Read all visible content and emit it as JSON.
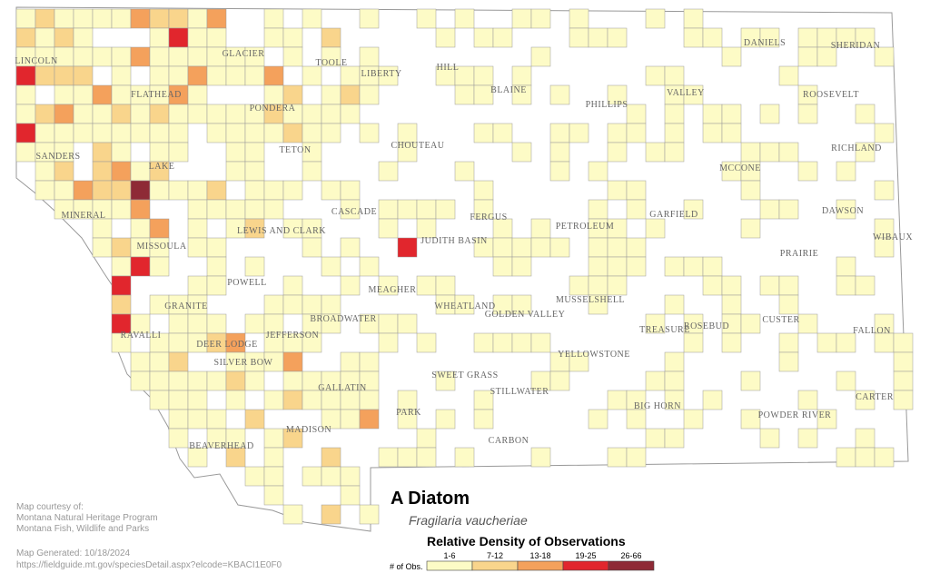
{
  "map": {
    "title": "A Diatom",
    "species": "Fragilaria vaucheriae",
    "counties": [
      "GLACIER",
      "TOOLE",
      "LIBERTY",
      "HILL",
      "DANIELS",
      "SHERIDAN",
      "LINCOLN",
      "FLATHEAD",
      "BLAINE",
      "PHILLIPS",
      "VALLEY",
      "ROOSEVELT",
      "PONDERA",
      "TETON",
      "CHOUTEAU",
      "RICHLAND",
      "SANDERS",
      "LAKE",
      "MCCONE",
      "CASCADE",
      "DAWSON",
      "MINERAL",
      "LEWIS AND CLARK",
      "JUDITH BASIN",
      "FERGUS",
      "PETROLEUM",
      "GARFIELD",
      "WIBAUX",
      "MISSOULA",
      "PRAIRIE",
      "POWELL",
      "MEAGHER",
      "WHEATLAND",
      "GOLDEN VALLEY",
      "MUSSELSHELL",
      "FALLON",
      "GRANITE",
      "BROADWATER",
      "TREASURE",
      "ROSEBUD",
      "CUSTER",
      "RAVALLI",
      "DEER LODGE",
      "JEFFERSON",
      "YELLOWSTONE",
      "SILVER BOW",
      "SWEET GRASS",
      "STILLWATER",
      "CARTER",
      "GALLATIN",
      "PARK",
      "BIG HORN",
      "POWDER RIVER",
      "MADISON",
      "BEAVERHEAD",
      "CARBON"
    ],
    "legend": {
      "title": "Relative Density of Observations",
      "axis_label": "# of Obs.",
      "classes": [
        {
          "label": "1-6",
          "color": "#fdfbc6"
        },
        {
          "label": "7-12",
          "color": "#f9d58c"
        },
        {
          "label": "13-18",
          "color": "#f4a15c"
        },
        {
          "label": "19-25",
          "color": "#e1262d"
        },
        {
          "label": "26-66",
          "color": "#8e2a36"
        }
      ]
    }
  },
  "credits": {
    "lines": [
      "Map courtesy of:",
      "Montana Natural Heritage Program",
      "Montana Fish, Wildlife and Parks"
    ],
    "generated": "Map Generated: 10/18/2024",
    "url": "https://fieldguide.mt.gov/speciesDetail.aspx?elcode=KBACI1E0F0"
  }
}
